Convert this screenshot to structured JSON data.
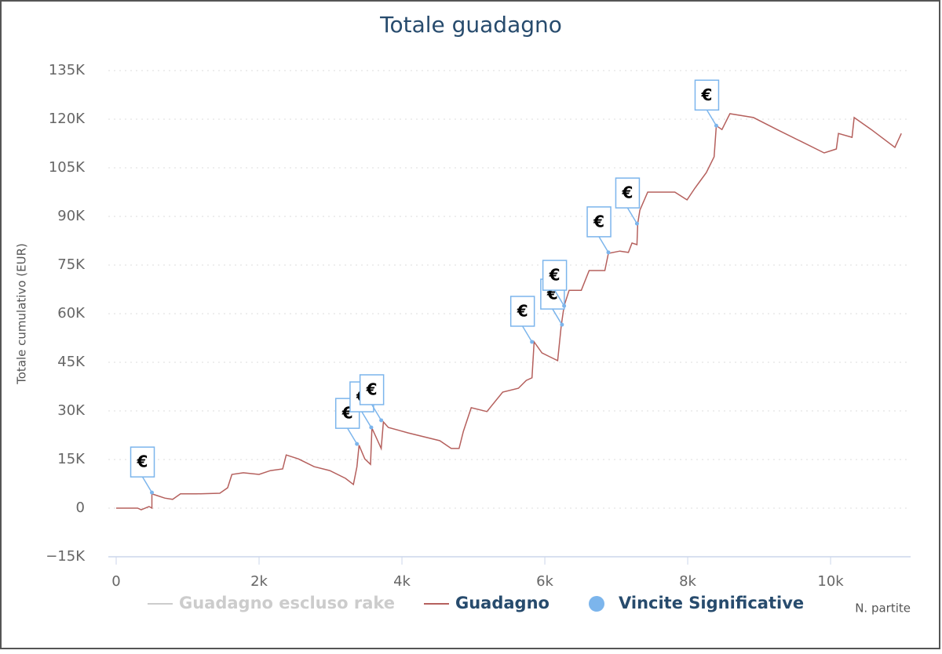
{
  "chart_data": {
    "type": "line",
    "title": "Totale guadagno",
    "x_label": "N. partite",
    "y_label": "Totale cumulativo (EUR)",
    "xlim": [
      -110,
      11120
    ],
    "ylim": [
      -15000,
      135000
    ],
    "xticks": [
      0,
      {
        "value": 2000,
        "label": "2k"
      },
      {
        "value": 4000,
        "label": "4k"
      },
      {
        "value": 6000,
        "label": "6k"
      },
      {
        "value": 8000,
        "label": "8k"
      },
      {
        "value": 10000,
        "label": "10k"
      }
    ],
    "yticks": [
      {
        "value": -15000,
        "label": "−15K"
      },
      0,
      {
        "value": 15000,
        "label": "15K"
      },
      {
        "value": 30000,
        "label": "30K"
      },
      {
        "value": 45000,
        "label": "45K"
      },
      {
        "value": 60000,
        "label": "60K"
      },
      {
        "value": 75000,
        "label": "75K"
      },
      {
        "value": 90000,
        "label": "90K"
      },
      {
        "value": 105000,
        "label": "105K"
      },
      {
        "value": 120000,
        "label": "120K"
      },
      {
        "value": 135000,
        "label": "135K"
      }
    ],
    "grid": true,
    "series": [
      {
        "name": "Guadagno escluso rake",
        "color": "#cccccc",
        "visible": false
      },
      {
        "name": "Guadagno",
        "color": "#b5605d",
        "visible": true,
        "x": [
          0,
          300,
          350,
          460,
          500,
          500,
          570,
          680,
          790,
          900,
          1120,
          1450,
          1560,
          1620,
          1780,
          2000,
          2160,
          2330,
          2380,
          2550,
          2770,
          2990,
          3210,
          3320,
          3370,
          3400,
          3480,
          3560,
          3580,
          3650,
          3710,
          3740,
          3810,
          4090,
          4530,
          4690,
          4800,
          4860,
          4970,
          5190,
          5410,
          5630,
          5740,
          5820,
          5850,
          5960,
          6070,
          6180,
          6230,
          6270,
          6340,
          6510,
          6620,
          6840,
          6890,
          7050,
          7170,
          7220,
          7290,
          7300,
          7330,
          7440,
          7820,
          7990,
          8100,
          8260,
          8370,
          8400,
          8480,
          8590,
          8920,
          9250,
          9580,
          9910,
          10080,
          10110,
          10300,
          10330,
          10570,
          10900,
          10990
        ],
        "values": [
          0,
          0,
          -500,
          500,
          0,
          4400,
          3900,
          3100,
          2700,
          4400,
          4400,
          4600,
          6300,
          10400,
          10900,
          10400,
          11600,
          12100,
          16400,
          15200,
          12800,
          11600,
          9200,
          7300,
          12800,
          19400,
          15200,
          13500,
          24700,
          21300,
          18400,
          26600,
          24900,
          23200,
          20800,
          18400,
          18400,
          23700,
          31000,
          29800,
          35800,
          37000,
          39400,
          40200,
          51300,
          47900,
          46700,
          45500,
          56400,
          62400,
          67200,
          67200,
          73300,
          73300,
          78600,
          79300,
          78900,
          81800,
          81300,
          87800,
          91900,
          97500,
          97500,
          95100,
          98700,
          103500,
          108400,
          118000,
          116800,
          121700,
          120500,
          116800,
          113200,
          109600,
          110800,
          115600,
          114400,
          120500,
          116800,
          111300,
          115600
        ]
      },
      {
        "name": "Vincite Significative",
        "type": "scatter",
        "color": "#7cb5ec",
        "visible": true,
        "marker_label": "€",
        "x": [
          500,
          3370,
          3570,
          3710,
          5820,
          6240,
          6270,
          6890,
          7290,
          8400
        ],
        "values": [
          4800,
          19800,
          24900,
          27100,
          51300,
          56600,
          62400,
          78900,
          87800,
          118000
        ]
      }
    ]
  }
}
